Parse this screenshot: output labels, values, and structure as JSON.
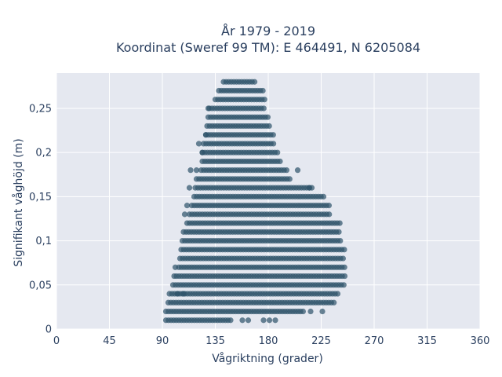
{
  "chart_data": {
    "type": "scatter",
    "title_line1": "År 1979 - 2019",
    "title_line2": "Koordinat (Sweref 99 TM): E 464491, N 6205084",
    "xlabel": "Vågriktning (grader)",
    "ylabel": "Signifikant våghöjd (m)",
    "xlim": [
      0,
      360
    ],
    "ylim": [
      0,
      0.29
    ],
    "x_ticks": [
      0,
      45,
      90,
      135,
      180,
      225,
      270,
      315,
      360
    ],
    "x_tick_labels": [
      "0",
      "45",
      "90",
      "135",
      "180",
      "225",
      "270",
      "315",
      "360"
    ],
    "y_ticks": [
      0,
      0.05,
      0.1,
      0.15,
      0.2,
      0.25
    ],
    "y_tick_labels": [
      "0",
      "0,05",
      "0,1",
      "0,15",
      "0,2",
      "0,25"
    ],
    "grid": true,
    "marker_color": "#2e5369",
    "plot_background": "#e5e8f0",
    "rows": [
      {
        "y": 0.01,
        "x_min": 93,
        "x_max": 148
      },
      {
        "y": 0.02,
        "x_min": 93,
        "x_max": 210
      },
      {
        "y": 0.03,
        "x_min": 95,
        "x_max": 236
      },
      {
        "y": 0.04,
        "x_min": 96,
        "x_max": 240
      },
      {
        "y": 0.05,
        "x_min": 99,
        "x_max": 245
      },
      {
        "y": 0.06,
        "x_min": 102,
        "x_max": 246
      },
      {
        "y": 0.07,
        "x_min": 104,
        "x_max": 246
      },
      {
        "y": 0.08,
        "x_min": 105,
        "x_max": 245
      },
      {
        "y": 0.09,
        "x_min": 106,
        "x_max": 246
      },
      {
        "y": 0.1,
        "x_min": 107,
        "x_max": 243
      },
      {
        "y": 0.11,
        "x_min": 108,
        "x_max": 242
      },
      {
        "y": 0.12,
        "x_min": 111,
        "x_max": 241
      },
      {
        "y": 0.13,
        "x_min": 113,
        "x_max": 233
      },
      {
        "y": 0.14,
        "x_min": 115,
        "x_max": 232
      },
      {
        "y": 0.15,
        "x_min": 117,
        "x_max": 228
      },
      {
        "y": 0.16,
        "x_min": 118,
        "x_max": 217
      },
      {
        "y": 0.17,
        "x_min": 119,
        "x_max": 200
      },
      {
        "y": 0.18,
        "x_min": 123,
        "x_max": 196
      },
      {
        "y": 0.19,
        "x_min": 124,
        "x_max": 190
      },
      {
        "y": 0.2,
        "x_min": 124,
        "x_max": 188
      },
      {
        "y": 0.21,
        "x_min": 125,
        "x_max": 185
      },
      {
        "y": 0.22,
        "x_min": 127,
        "x_max": 185
      },
      {
        "y": 0.23,
        "x_min": 128,
        "x_max": 182
      },
      {
        "y": 0.24,
        "x_min": 129,
        "x_max": 180
      },
      {
        "y": 0.25,
        "x_min": 130,
        "x_max": 178
      },
      {
        "y": 0.26,
        "x_min": 135,
        "x_max": 177
      },
      {
        "y": 0.27,
        "x_min": 138,
        "x_max": 176
      },
      {
        "y": 0.28,
        "x_min": 142,
        "x_max": 169
      }
    ],
    "outliers": [
      {
        "x": 103,
        "y": 0.04
      },
      {
        "x": 108,
        "y": 0.04
      },
      {
        "x": 158,
        "y": 0.01
      },
      {
        "x": 163,
        "y": 0.01
      },
      {
        "x": 176,
        "y": 0.01
      },
      {
        "x": 181,
        "y": 0.01
      },
      {
        "x": 186,
        "y": 0.01
      },
      {
        "x": 216,
        "y": 0.02
      },
      {
        "x": 226,
        "y": 0.02
      },
      {
        "x": 100,
        "y": 0.06
      },
      {
        "x": 101,
        "y": 0.07
      },
      {
        "x": 109,
        "y": 0.13
      },
      {
        "x": 111,
        "y": 0.14
      },
      {
        "x": 113,
        "y": 0.16
      },
      {
        "x": 114,
        "y": 0.18
      },
      {
        "x": 119,
        "y": 0.18
      },
      {
        "x": 124,
        "y": 0.2
      },
      {
        "x": 121,
        "y": 0.21
      },
      {
        "x": 127,
        "y": 0.22
      },
      {
        "x": 129,
        "y": 0.25
      },
      {
        "x": 205,
        "y": 0.18
      },
      {
        "x": 215,
        "y": 0.16
      }
    ]
  }
}
